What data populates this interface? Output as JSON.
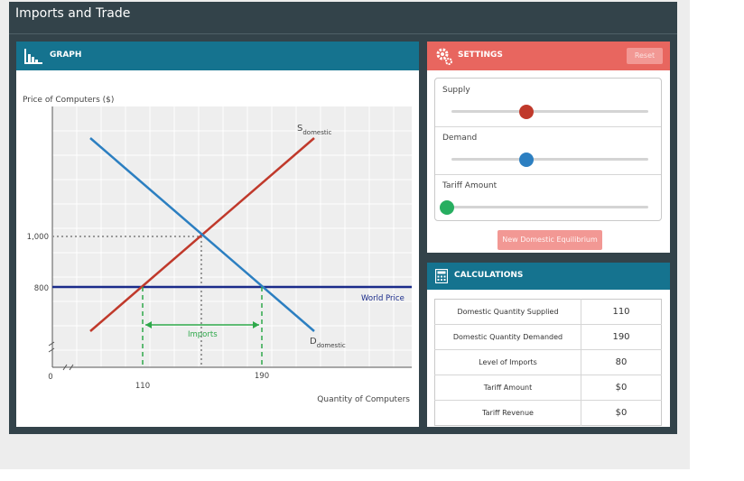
{
  "app": {
    "title": "Imports and Trade"
  },
  "graph": {
    "header_label": "GRAPH",
    "y_axis_label": "Price of Computers ($)",
    "x_axis_label": "Quantity of Computers",
    "y_ticks": [
      "1,000",
      "800"
    ],
    "x_ticks": [
      "110",
      "190"
    ],
    "origin_label": "0",
    "supply_label_main": "S",
    "supply_label_sub": "domestic",
    "demand_label_main": "D",
    "demand_label_sub": "domestic",
    "world_price_label": "World Price",
    "imports_label": "Imports",
    "colors": {
      "supply": "#c0392b",
      "demand": "#2c7fc1",
      "world_price": "#1a2b8a",
      "imports": "#2ea84a",
      "grid": "#ffffff",
      "plot_bg": "#eeeeee"
    }
  },
  "settings": {
    "header_label": "SETTINGS",
    "reset_label": "Reset",
    "sliders": [
      {
        "label": "Supply",
        "color": "#c0392b",
        "level": 0.4
      },
      {
        "label": "Demand",
        "color": "#2c7fc1",
        "level": 0.4
      },
      {
        "label": "Tariff Amount",
        "color": "#27ae60",
        "level": 0.0
      }
    ],
    "new_equilibrium_label": "New Domestic Equilibrium"
  },
  "calculations": {
    "header_label": "CALCULATIONS",
    "rows": [
      {
        "label": "Domestic Quantity Supplied",
        "value": "110"
      },
      {
        "label": "Domestic Quantity Demanded",
        "value": "190"
      },
      {
        "label": "Level of Imports",
        "value": "80"
      },
      {
        "label": "Tariff Amount",
        "value": "$0"
      },
      {
        "label": "Tariff Revenue",
        "value": "$0"
      }
    ]
  }
}
